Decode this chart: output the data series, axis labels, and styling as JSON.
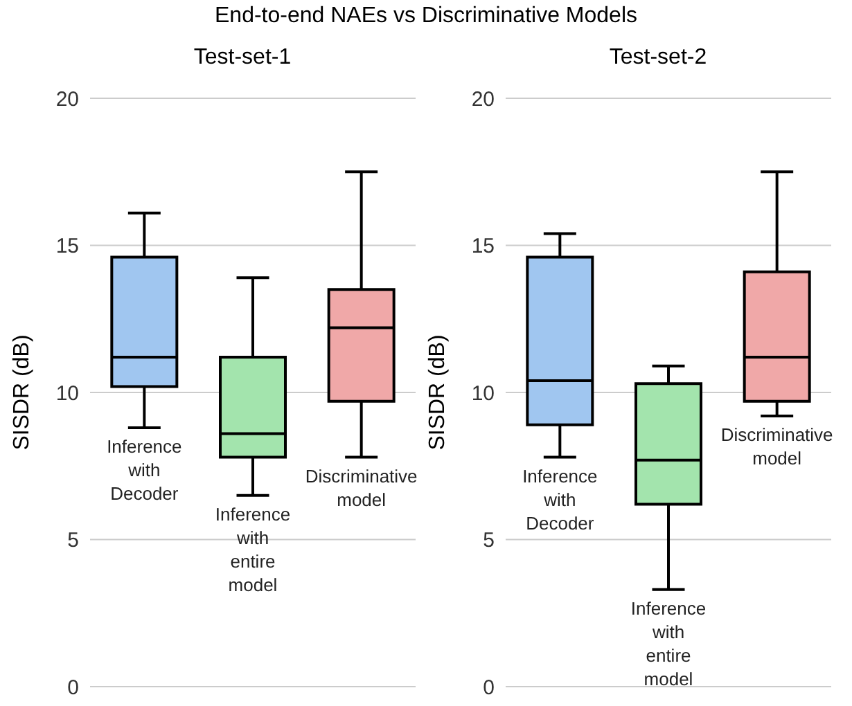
{
  "chart_data": [
    {
      "type": "box",
      "title": "Test-set-1",
      "ylabel": "SISDR (dB)",
      "annotations": [
        "End-to-end NAEs vs Discriminative Models"
      ],
      "categories": [
        "Inference with Decoder",
        "Inference with entire model",
        "Discriminative model"
      ],
      "colors": [
        "#a0c6f0",
        "#a3e4ad",
        "#f0a8a8"
      ],
      "boxes": [
        {
          "low": 8.8,
          "q1": 10.2,
          "median": 11.2,
          "q3": 14.6,
          "high": 16.1
        },
        {
          "low": 6.5,
          "q1": 7.8,
          "median": 8.6,
          "q3": 11.2,
          "high": 13.9
        },
        {
          "low": 7.8,
          "q1": 9.7,
          "median": 12.2,
          "q3": 13.5,
          "high": 17.5
        }
      ],
      "ylim": [
        0,
        20
      ],
      "yticks": [
        0,
        5,
        10,
        15,
        20
      ],
      "grid": "y"
    },
    {
      "type": "box",
      "title": "Test-set-2",
      "ylabel": "SISDR (dB)",
      "categories": [
        "Inference with Decoder",
        "Inference with entire model",
        "Discriminative model"
      ],
      "colors": [
        "#a0c6f0",
        "#a3e4ad",
        "#f0a8a8"
      ],
      "boxes": [
        {
          "low": 7.8,
          "q1": 8.9,
          "median": 10.4,
          "q3": 14.6,
          "high": 15.4
        },
        {
          "low": 3.3,
          "q1": 6.2,
          "median": 7.7,
          "q3": 10.3,
          "high": 10.9
        },
        {
          "low": 9.2,
          "q1": 9.7,
          "median": 11.2,
          "q3": 14.1,
          "high": 17.5
        }
      ],
      "ylim": [
        0,
        20
      ],
      "yticks": [
        0,
        5,
        10,
        15,
        20
      ],
      "grid": "y"
    }
  ]
}
